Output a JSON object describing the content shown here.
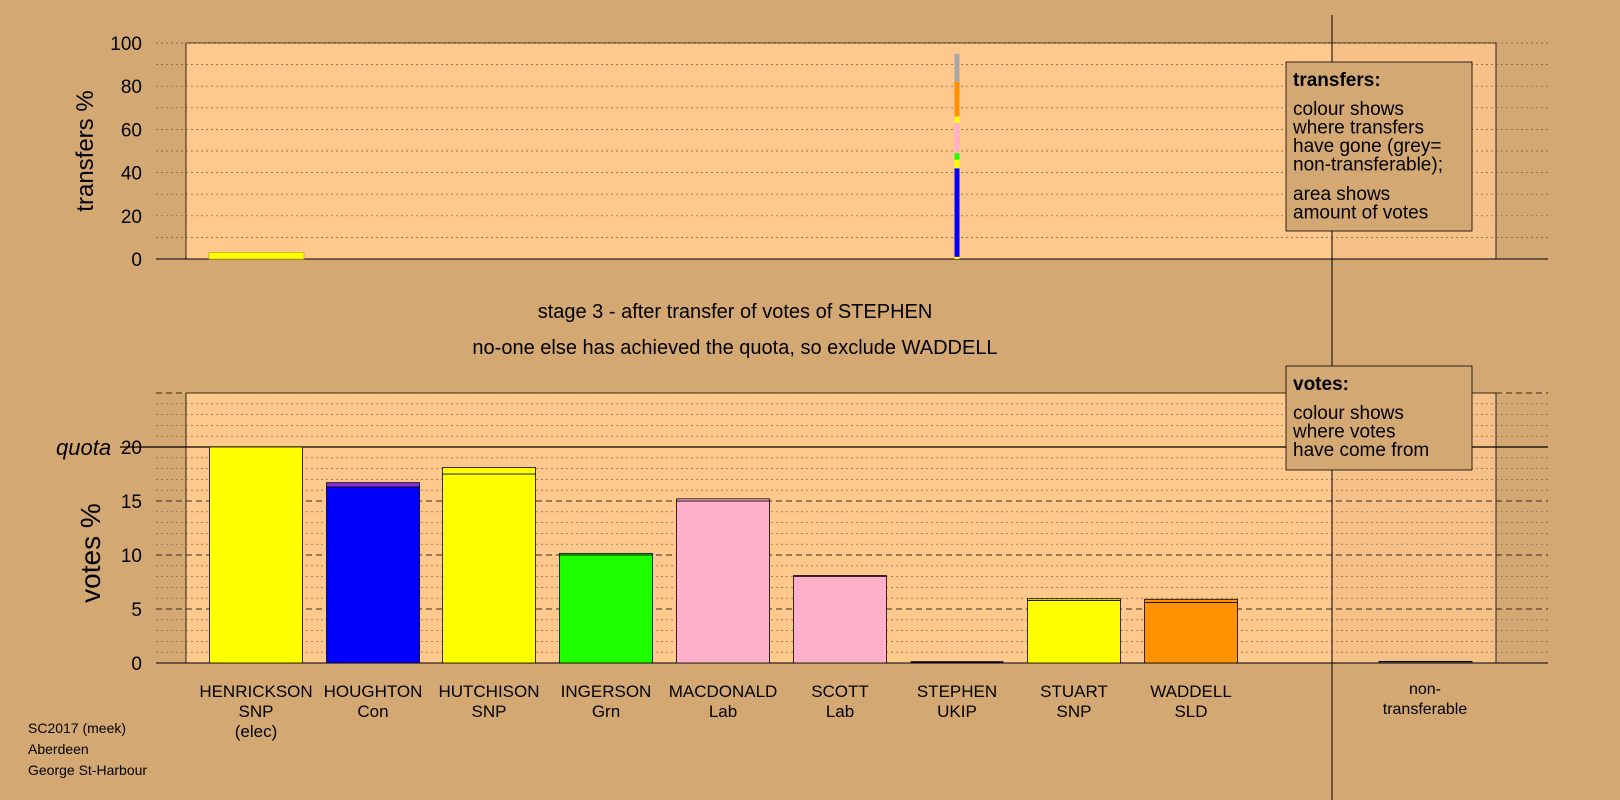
{
  "stage_title": "stage 3 - after transfer of votes of STEPHEN",
  "stage_subtitle": "no-one else has achieved the quota, so exclude WADDELL",
  "footer": [
    "SC2017 (meek)",
    "Aberdeen",
    "George St-Harbour"
  ],
  "legend_transfers": {
    "heading": "transfers:",
    "lines1": [
      "colour shows",
      "where transfers",
      "have gone (grey=",
      "non-transferable);"
    ],
    "lines2": [
      "area shows",
      "amount of votes"
    ]
  },
  "legend_votes": {
    "heading": "votes:",
    "lines": [
      "colour shows",
      "where votes",
      "have come from"
    ]
  },
  "colors": {
    "background": "#d4a873",
    "plot_bg": "#ffc98e",
    "SNP": "#ffff00",
    "Con": "#0000ff",
    "Grn": "#1eff00",
    "Lab": "#ffb0c8",
    "UKIP": "#8a2be2",
    "SLD": "#ff9200",
    "nontransferable": "#a8a8a8"
  },
  "chart_data": [
    {
      "type": "bar",
      "name": "transfers",
      "ylabel": "transfers %",
      "ylim": [
        0,
        100
      ],
      "yticks": [
        0,
        20,
        40,
        60,
        80,
        100
      ],
      "transfer_from": "STEPHEN",
      "segments": [
        {
          "to": "HENRICKSON",
          "party": "SNP",
          "value": 1
        },
        {
          "to": "HOUGHTON",
          "party": "Con",
          "value": 41
        },
        {
          "to": "HUTCHISON",
          "party": "SNP",
          "value": 4
        },
        {
          "to": "INGERSON",
          "party": "Grn",
          "value": 3
        },
        {
          "to": "MACDONALD",
          "party": "Lab",
          "value": 9
        },
        {
          "to": "SCOTT",
          "party": "Lab",
          "value": 5
        },
        {
          "to": "STUART",
          "party": "SNP",
          "value": 3
        },
        {
          "to": "WADDELL",
          "party": "SLD",
          "value": 16
        },
        {
          "to": "non-transferable",
          "party": "nontransferable",
          "value": 13
        }
      ],
      "henrickson_surplus_band": 3
    },
    {
      "type": "bar",
      "name": "votes",
      "ylabel": "votes %",
      "ylim": [
        0,
        25
      ],
      "yticks": [
        0,
        5,
        10,
        15,
        20
      ],
      "quota": 20,
      "quota_label": "quota",
      "candidates": [
        {
          "name": "HENRICKSON",
          "party": "SNP",
          "note": "(elec)",
          "color_key": "SNP",
          "value": 20.0,
          "cap": 0
        },
        {
          "name": "HOUGHTON",
          "party": "Con",
          "note": "",
          "color_key": "Con",
          "value": 16.3,
          "cap": 0.4
        },
        {
          "name": "HUTCHISON",
          "party": "SNP",
          "note": "",
          "color_key": "SNP",
          "value": 17.5,
          "cap": 0.6
        },
        {
          "name": "INGERSON",
          "party": "Grn",
          "note": "",
          "color_key": "Grn",
          "value": 10.0,
          "cap": 0.15
        },
        {
          "name": "MACDONALD",
          "party": "Lab",
          "note": "",
          "color_key": "Lab",
          "value": 15.0,
          "cap": 0.2
        },
        {
          "name": "SCOTT",
          "party": "Lab",
          "note": "",
          "color_key": "Lab",
          "value": 8.0,
          "cap": 0.1
        },
        {
          "name": "STEPHEN",
          "party": "UKIP",
          "note": "",
          "color_key": "UKIP",
          "value": 0,
          "cap": 0
        },
        {
          "name": "STUART",
          "party": "SNP",
          "note": "",
          "color_key": "SNP",
          "value": 5.8,
          "cap": 0.15
        },
        {
          "name": "WADDELL",
          "party": "SLD",
          "note": "",
          "color_key": "SLD",
          "value": 5.6,
          "cap": 0.3
        }
      ],
      "nontransferable": {
        "label": [
          "non-",
          "transferable"
        ],
        "value": 0.15
      }
    }
  ]
}
